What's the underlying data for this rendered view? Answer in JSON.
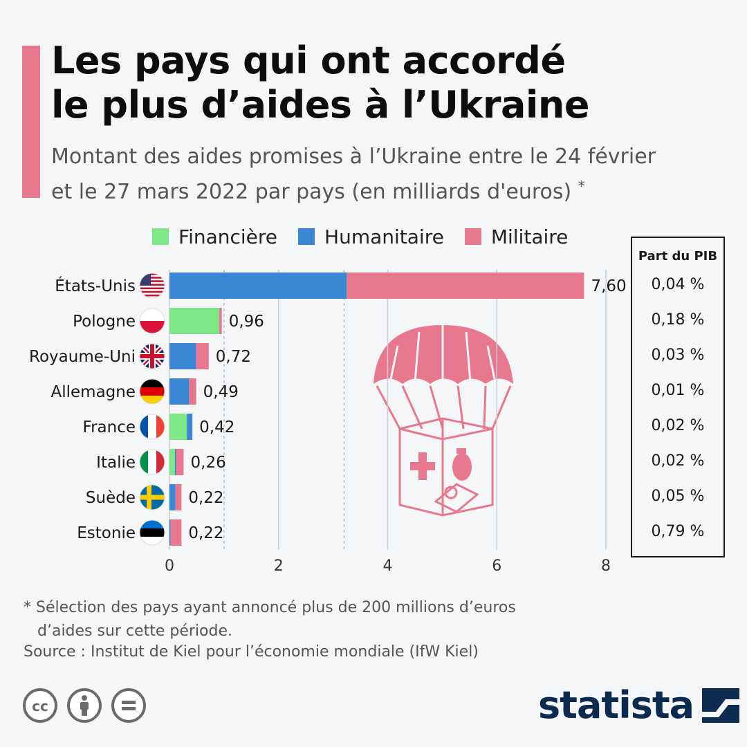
{
  "header": {
    "title_line1": "Les pays qui ont accordé",
    "title_line2": "le plus d’aides à l’Ukraine",
    "subtitle_line1": "Montant des aides promises à l’Ukraine entre le 24 février",
    "subtitle_line2": "et le 27 mars 2022 par pays (en milliards d'euros)",
    "subtitle_star": "*"
  },
  "colors": {
    "financiere": "#7ee787",
    "humanitaire": "#3a86d4",
    "militaire": "#e8788d",
    "accent": "#e8788d"
  },
  "icons": {
    "parachute": "parachute-aid-icon",
    "flags": "country-flag-icon"
  },
  "chart_data": {
    "type": "bar",
    "orientation": "horizontal",
    "stacked": true,
    "categories": [
      "États-Unis",
      "Pologne",
      "Royaume-Uni",
      "Allemagne",
      "France",
      "Italie",
      "Suède",
      "Estonie"
    ],
    "series": [
      {
        "name": "Financière",
        "values": [
          0,
          0.91,
          0,
          0,
          0.32,
          0.1,
          0,
          0
        ]
      },
      {
        "name": "Humanitaire",
        "values": [
          3.25,
          0,
          0.49,
          0.36,
          0.1,
          0.02,
          0.11,
          0.02
        ]
      },
      {
        "name": "Militaire",
        "values": [
          4.35,
          0.05,
          0.23,
          0.13,
          0,
          0.14,
          0.11,
          0.2
        ]
      }
    ],
    "totals": [
      7.6,
      0.96,
      0.72,
      0.49,
      0.42,
      0.26,
      0.22,
      0.22
    ],
    "total_labels": [
      "7,60",
      "0,96",
      "0,72",
      "0,49",
      "0,42",
      "0,26",
      "0,22",
      "0,22"
    ],
    "xlim": [
      0,
      8
    ],
    "xticks": [
      "0",
      "2",
      "4",
      "6",
      "8"
    ],
    "grid": true,
    "legend": "top",
    "pib_header": "Part du PIB",
    "pib": [
      "0,04 %",
      "0,18 %",
      "0,03 %",
      "0,01 %",
      "0,02 %",
      "0,02 %",
      "0,05 %",
      "0,79 %"
    ]
  },
  "footer": {
    "footnote_line1": "* Sélection des pays ayant annoncé plus de 200 millions d’euros",
    "footnote_line2": "d’aides sur cette période.",
    "source": "Source : Institut de Kiel pour l’économie mondiale (IfW Kiel)",
    "brand": "statista",
    "license_icons": [
      "cc-icon",
      "attribution-icon",
      "no-derivatives-icon"
    ]
  }
}
